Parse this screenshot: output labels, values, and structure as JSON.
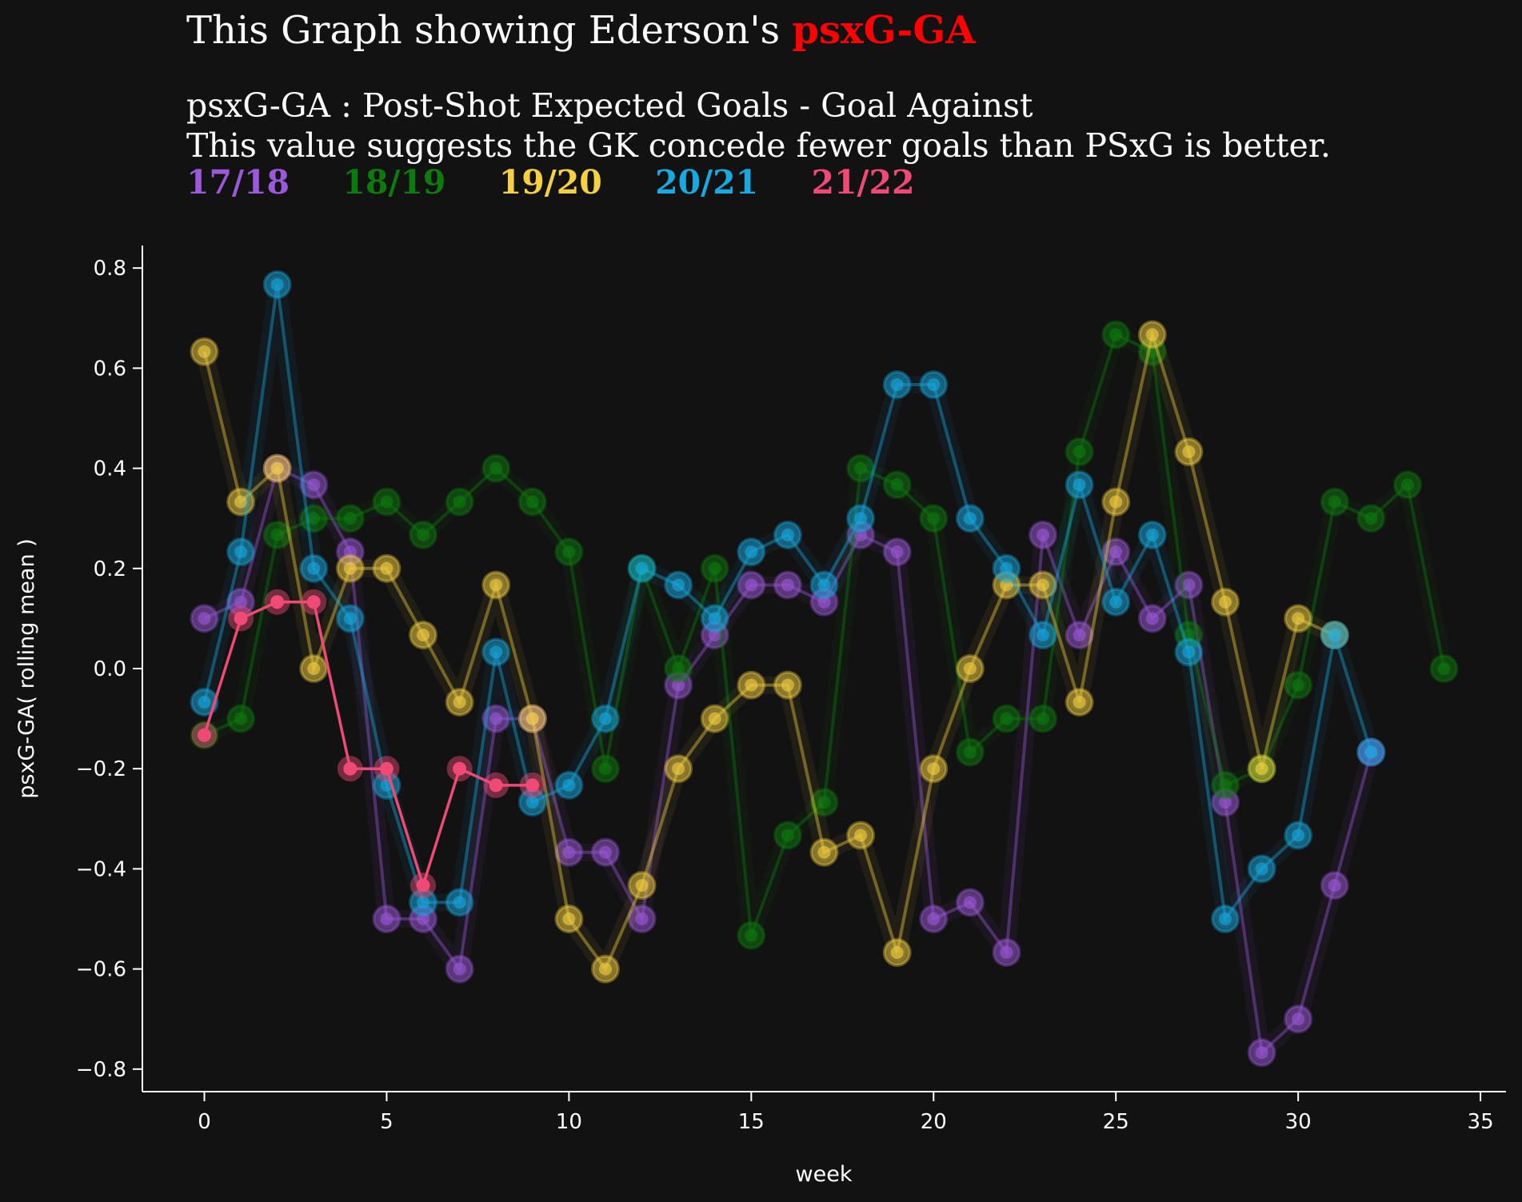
{
  "header": {
    "title_prefix": "This Graph showing Ederson's ",
    "title_accent": "psxG-GA",
    "subtitle_1": "psxG-GA : Post-Shot Expected Goals - Goal Against",
    "subtitle_2": "This value suggests the GK concede fewer goals than PSxG is better."
  },
  "colors": {
    "background": "#121212",
    "axis": "#ffffff",
    "title_accent": "#ff0000"
  },
  "chart_data": {
    "type": "line",
    "xlabel": "week",
    "ylabel": "psxG-GA( rolling mean )",
    "xlim": [
      -1.7,
      35.7
    ],
    "ylim": [
      -0.845,
      0.845
    ],
    "xticks": [
      0,
      5,
      10,
      15,
      20,
      25,
      30,
      35
    ],
    "yticks": [
      -0.8,
      -0.6,
      -0.4,
      -0.2,
      0.0,
      0.2,
      0.4,
      0.6,
      0.8
    ],
    "xtick_labels": [
      "0",
      "5",
      "10",
      "15",
      "20",
      "25",
      "30",
      "35"
    ],
    "ytick_labels": [
      "−0.8",
      "−0.6",
      "−0.4",
      "−0.2",
      "0.0",
      "0.2",
      "0.4",
      "0.6",
      "0.8"
    ],
    "legend_placement": "top-left, below subtitle",
    "series": [
      {
        "name": "17/18",
        "color": "#9b59d9",
        "faded": true,
        "y": [
          0.1,
          0.133,
          0.4,
          0.367,
          0.233,
          -0.5,
          -0.5,
          -0.6,
          -0.1,
          -0.1,
          -0.367,
          -0.367,
          -0.5,
          -0.033,
          0.067,
          0.167,
          0.167,
          0.133,
          0.267,
          0.233,
          -0.5,
          -0.467,
          -0.567,
          0.267,
          0.067,
          0.233,
          0.1,
          0.167,
          -0.267,
          -0.767,
          -0.7,
          -0.433,
          -0.167
        ]
      },
      {
        "name": "18/19",
        "color": "#0d7a0d",
        "faded": true,
        "y": [
          -0.133,
          -0.1,
          0.267,
          0.3,
          0.3,
          0.333,
          0.267,
          0.333,
          0.4,
          0.333,
          0.233,
          -0.2,
          0.2,
          0.0,
          0.2,
          -0.533,
          -0.333,
          -0.267,
          0.4,
          0.367,
          0.3,
          -0.167,
          -0.1,
          -0.1,
          0.433,
          0.667,
          0.633,
          0.067,
          -0.233,
          -0.2,
          -0.033,
          0.333,
          0.3,
          0.367,
          0.0
        ]
      },
      {
        "name": "19/20",
        "color": "#f5d142",
        "faded": true,
        "y": [
          0.633,
          0.333,
          0.4,
          0.0,
          0.2,
          0.2,
          0.067,
          -0.067,
          0.167,
          -0.1,
          -0.5,
          -0.6,
          -0.433,
          -0.2,
          -0.1,
          -0.033,
          -0.033,
          -0.367,
          -0.333,
          -0.567,
          -0.2,
          0.0,
          0.167,
          0.167,
          -0.067,
          0.333,
          0.667,
          0.433,
          0.133,
          -0.2,
          0.1,
          0.067
        ]
      },
      {
        "name": "20/21",
        "color": "#18a9e0",
        "faded": true,
        "y": [
          -0.067,
          0.233,
          0.767,
          0.2,
          0.1,
          -0.233,
          -0.467,
          -0.467,
          0.033,
          -0.267,
          -0.233,
          -0.1,
          0.2,
          0.167,
          0.1,
          0.233,
          0.267,
          0.167,
          0.3,
          0.567,
          0.567,
          0.3,
          0.2,
          0.067,
          0.367,
          0.133,
          0.267,
          0.033,
          -0.5,
          -0.4,
          -0.333,
          0.067,
          -0.167
        ]
      },
      {
        "name": "21/22",
        "color": "#ef4a75",
        "faded": false,
        "y": [
          -0.133,
          0.1,
          0.133,
          0.133,
          -0.2,
          -0.2,
          -0.433,
          -0.2,
          -0.233,
          -0.233
        ]
      }
    ]
  }
}
